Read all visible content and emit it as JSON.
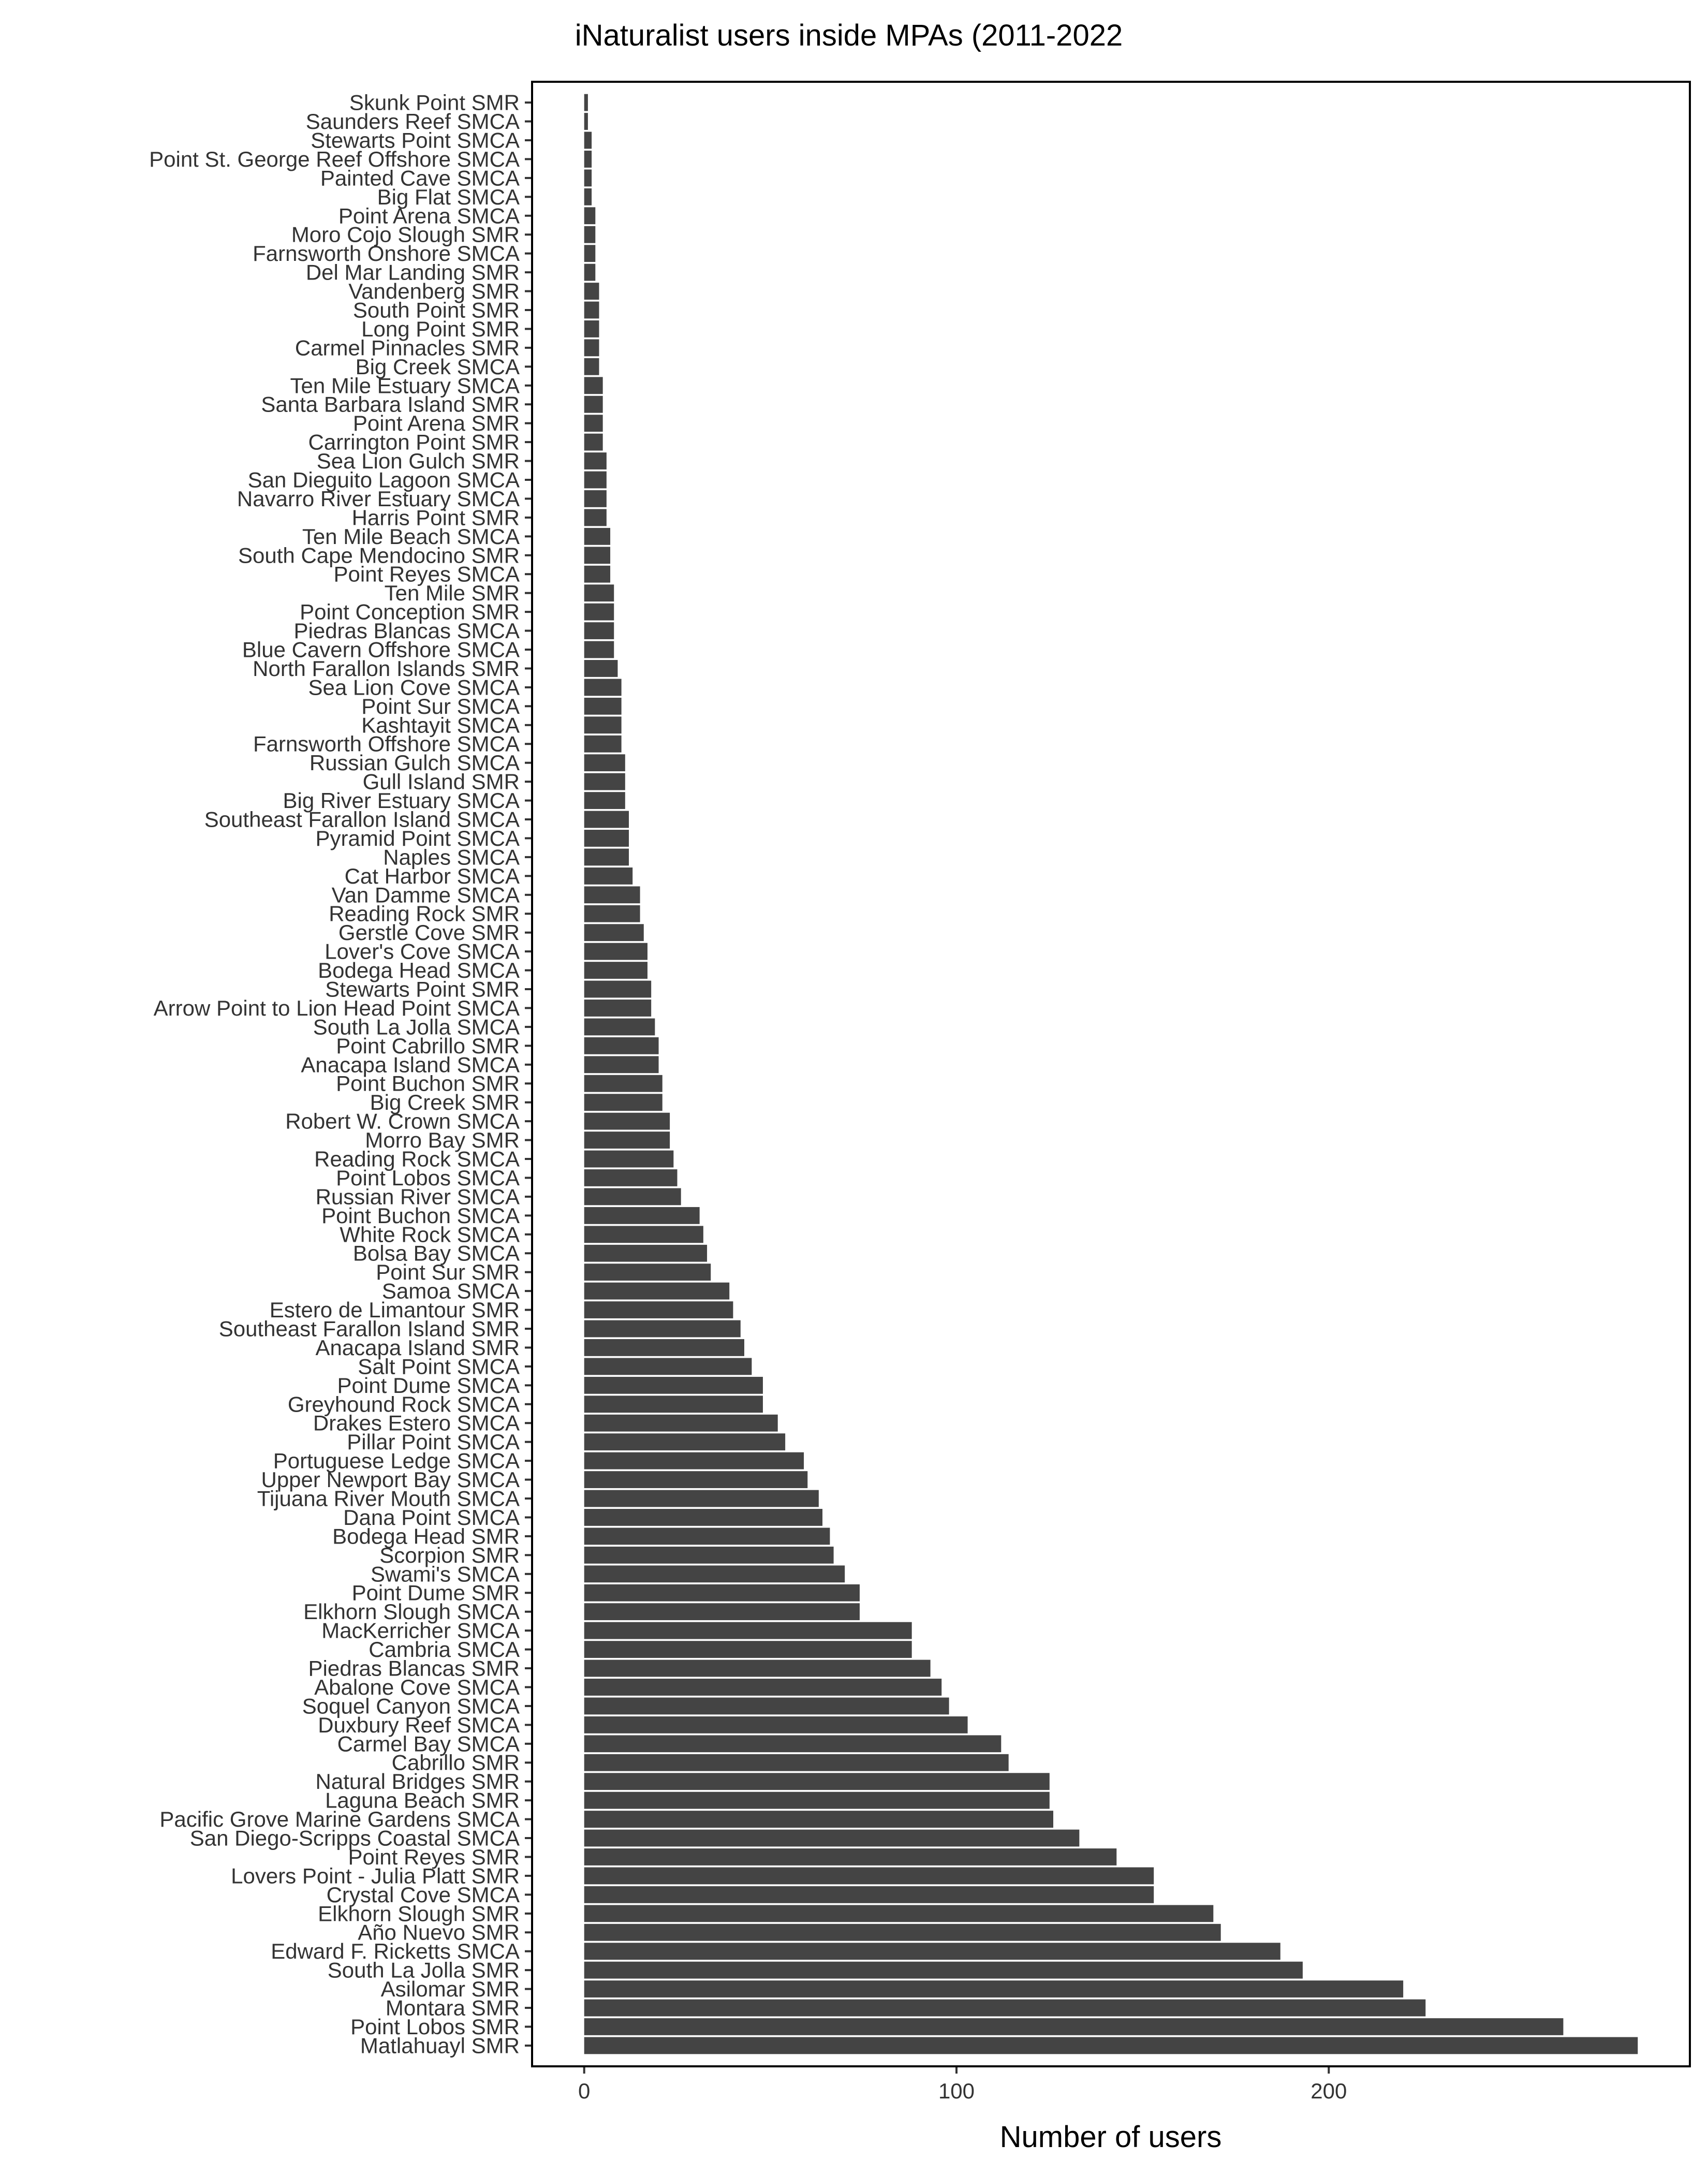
{
  "chart_data": {
    "type": "bar",
    "orientation": "horizontal",
    "title": "iNaturalist users inside MPAs (2011-2022",
    "xlabel": "Number of users",
    "ylabel": "",
    "xlim": [
      -14,
      297
    ],
    "x_ticks": [
      0,
      100,
      200
    ],
    "grid": false,
    "bar_color": "#444444",
    "categories": [
      "Skunk Point SMR",
      "Saunders Reef SMCA",
      "Stewarts Point SMCA",
      "Point St. George Reef Offshore SMCA",
      "Painted Cave SMCA",
      "Big Flat SMCA",
      "Point Arena SMCA",
      "Moro Cojo Slough SMR",
      "Farnsworth Onshore SMCA",
      "Del Mar Landing SMR",
      "Vandenberg SMR",
      "South Point SMR",
      "Long Point SMR",
      "Carmel Pinnacles SMR",
      "Big Creek SMCA",
      "Ten Mile Estuary SMCA",
      "Santa Barbara Island SMR",
      "Point Arena SMR",
      "Carrington Point SMR",
      "Sea Lion Gulch SMR",
      "San Dieguito Lagoon SMCA",
      "Navarro River Estuary SMCA",
      "Harris Point SMR",
      "Ten Mile Beach SMCA",
      "South Cape Mendocino SMR",
      "Point Reyes SMCA",
      "Ten Mile SMR",
      "Point Conception SMR",
      "Piedras Blancas SMCA",
      "Blue Cavern Offshore SMCA",
      "North Farallon Islands SMR",
      "Sea Lion Cove SMCA",
      "Point Sur SMCA",
      "Kashtayit SMCA",
      "Farnsworth Offshore SMCA",
      "Russian Gulch SMCA",
      "Gull Island SMR",
      "Big River Estuary SMCA",
      "Southeast Farallon Island SMCA",
      "Pyramid Point SMCA",
      "Naples SMCA",
      "Cat Harbor SMCA",
      "Van Damme SMCA",
      "Reading Rock SMR",
      "Gerstle Cove SMR",
      "Lover's Cove SMCA",
      "Bodega Head SMCA",
      "Stewarts Point SMR",
      "Arrow Point to Lion Head Point SMCA",
      "South La Jolla SMCA",
      "Point Cabrillo SMR",
      "Anacapa Island SMCA",
      "Point Buchon SMR",
      "Big Creek SMR",
      "Robert W. Crown SMCA",
      "Morro Bay SMR",
      "Reading Rock SMCA",
      "Point Lobos SMCA",
      "Russian River SMCA",
      "Point Buchon SMCA",
      "White Rock SMCA",
      "Bolsa Bay SMCA",
      "Point Sur SMR",
      "Samoa SMCA",
      "Estero de Limantour SMR",
      "Southeast Farallon Island SMR",
      "Anacapa Island SMR",
      "Salt Point SMCA",
      "Point Dume SMCA",
      "Greyhound Rock SMCA",
      "Drakes Estero SMCA",
      "Pillar Point SMCA",
      "Portuguese Ledge SMCA",
      "Upper Newport Bay SMCA",
      "Tijuana River Mouth SMCA",
      "Dana Point SMCA",
      "Bodega Head SMR",
      "Scorpion SMR",
      "Swami's SMCA",
      "Point Dume SMR",
      "Elkhorn Slough SMCA",
      "MacKerricher SMCA",
      "Cambria SMCA",
      "Piedras Blancas SMR",
      "Abalone Cove SMCA",
      "Soquel Canyon SMCA",
      "Duxbury Reef SMCA",
      "Carmel Bay SMCA",
      "Cabrillo SMR",
      "Natural Bridges SMR",
      "Laguna Beach SMR",
      "Pacific Grove Marine Gardens SMCA",
      "San Diego-Scripps Coastal SMCA",
      "Point Reyes SMR",
      "Lovers Point - Julia Platt SMR",
      "Crystal Cove SMCA",
      "Elkhorn Slough SMR",
      "Año Nuevo SMR",
      "Edward F. Ricketts SMCA",
      "South La Jolla SMR",
      "Asilomar SMR",
      "Montara SMR",
      "Point Lobos SMR",
      "Matlahuayl SMR"
    ],
    "values": [
      1,
      1,
      2,
      2,
      2,
      2,
      3,
      3,
      3,
      3,
      4,
      4,
      4,
      4,
      4,
      5,
      5,
      5,
      5,
      6,
      6,
      6,
      6,
      7,
      7,
      7,
      8,
      8,
      8,
      8,
      9,
      10,
      10,
      10,
      10,
      11,
      11,
      11,
      12,
      12,
      12,
      13,
      15,
      15,
      16,
      17,
      17,
      18,
      18,
      19,
      20,
      20,
      21,
      21,
      23,
      23,
      24,
      25,
      26,
      31,
      32,
      33,
      34,
      39,
      40,
      42,
      43,
      45,
      48,
      48,
      52,
      54,
      59,
      60,
      63,
      64,
      66,
      67,
      70,
      74,
      74,
      88,
      88,
      93,
      96,
      98,
      103,
      112,
      114,
      125,
      125,
      126,
      133,
      143,
      153,
      153,
      169,
      171,
      187,
      193,
      220,
      226,
      263,
      283
    ]
  }
}
